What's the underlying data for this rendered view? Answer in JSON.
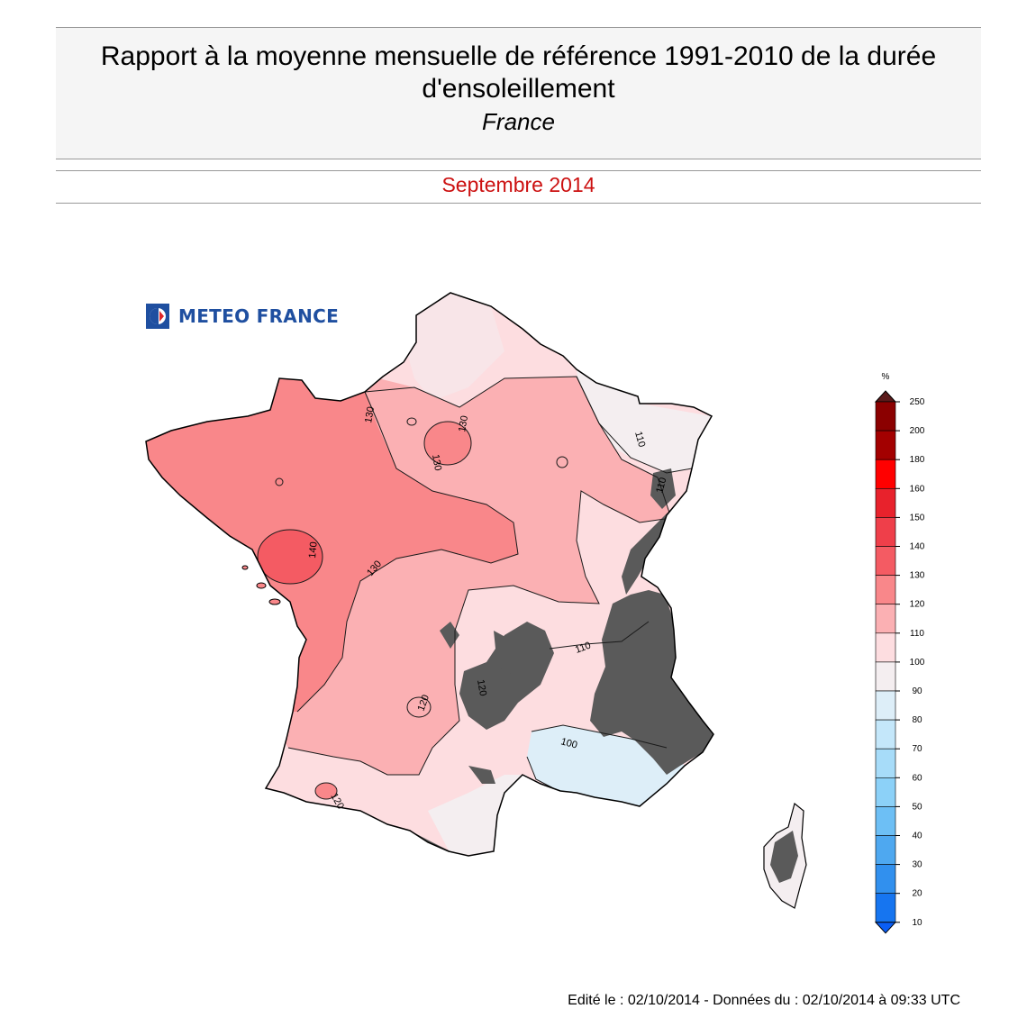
{
  "header": {
    "title": "Rapport à la moyenne mensuelle de référence 1991-2010 de la durée d'ensoleillement",
    "region": "France",
    "period": "Septembre 2014"
  },
  "logo": {
    "text": "METEO FRANCE",
    "icon": "meteo-france-logo-icon",
    "color": "#1f4fa0"
  },
  "legend": {
    "unit": "%",
    "levels": [
      {
        "value": "250",
        "color": "#8b0000"
      },
      {
        "value": "200",
        "color": "#a30000"
      },
      {
        "value": "180",
        "color": "#ff0000"
      },
      {
        "value": "160",
        "color": "#e8222c"
      },
      {
        "value": "150",
        "color": "#ef3f4a"
      },
      {
        "value": "140",
        "color": "#f45b63"
      },
      {
        "value": "130",
        "color": "#f9878a"
      },
      {
        "value": "120",
        "color": "#fbb0b3"
      },
      {
        "value": "110",
        "color": "#fddde0"
      },
      {
        "value": "100",
        "color": "#f4eef0"
      },
      {
        "value": "90",
        "color": "#ddeef8"
      },
      {
        "value": "80",
        "color": "#c4e7fa"
      },
      {
        "value": "70",
        "color": "#a7dcf9"
      },
      {
        "value": "60",
        "color": "#8cd1f8"
      },
      {
        "value": "50",
        "color": "#6dbff5"
      },
      {
        "value": "40",
        "color": "#4ea8f0"
      },
      {
        "value": "30",
        "color": "#3190ee"
      },
      {
        "value": "20",
        "color": "#1675f0"
      },
      {
        "value": "10",
        "color": "#0a5ef5"
      }
    ]
  },
  "map": {
    "zones": [
      {
        "id": "brittany-vendee",
        "level": "130-140",
        "color": "#f9878a"
      },
      {
        "id": "vendee-core",
        "level": "140-150",
        "color": "#f45b63"
      },
      {
        "id": "centre-southwest",
        "level": "120-130",
        "color": "#fbb0b3"
      },
      {
        "id": "north-east",
        "level": "110-120",
        "color": "#fddde0"
      },
      {
        "id": "alsace",
        "level": "100-110",
        "color": "#f4eef0"
      },
      {
        "id": "provence",
        "level": "90-100",
        "color": "#ddeef8"
      },
      {
        "id": "corsica",
        "level": "100-110",
        "color": "#f4eef0"
      }
    ],
    "contour_labels": [
      "130",
      "130",
      "130",
      "140",
      "130",
      "110",
      "120",
      "120",
      "110",
      "100",
      "120",
      "110"
    ],
    "relief_color": "#5a5a5a"
  },
  "footer": {
    "text": "Edité le : 02/10/2014 - Données du : 02/10/2014 à 09:33 UTC"
  }
}
